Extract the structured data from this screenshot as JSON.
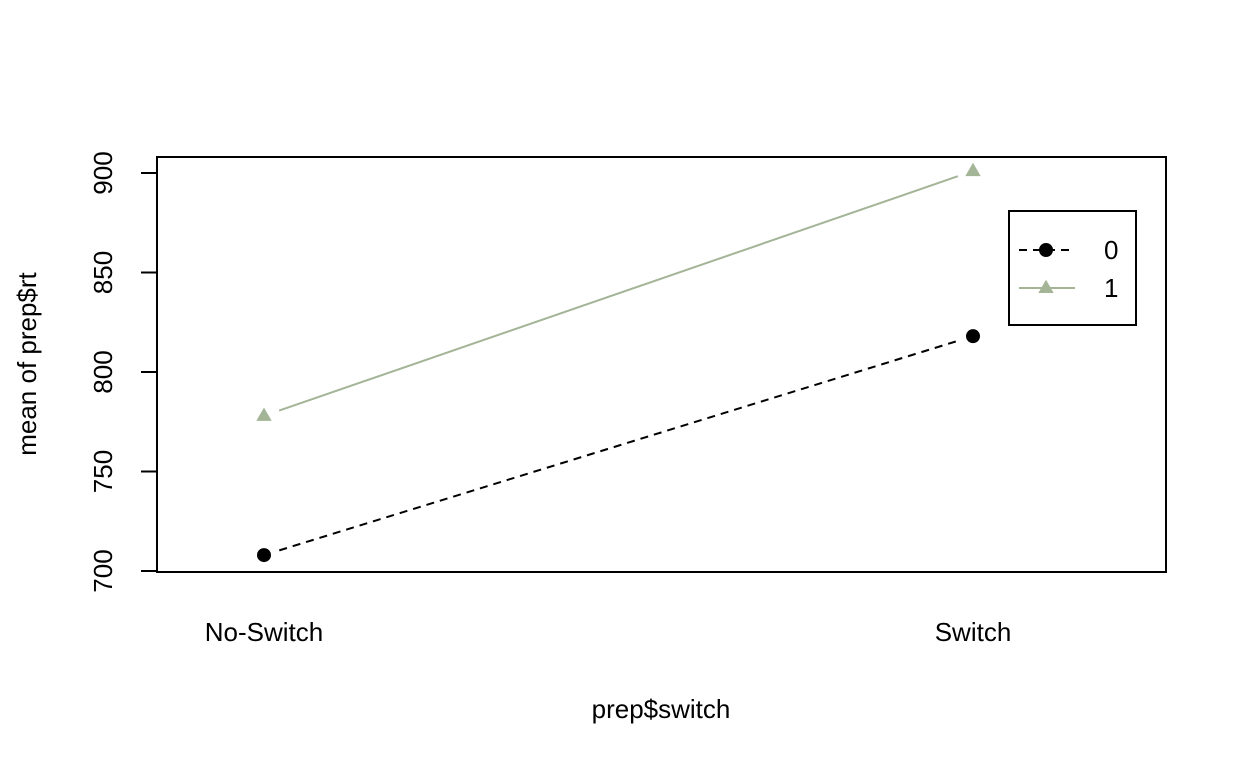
{
  "chart_data": {
    "type": "line",
    "xlabel": "prep$switch",
    "ylabel": "mean of  prep$rt",
    "categories": [
      "No-Switch",
      "Switch"
    ],
    "ylim": [
      700,
      910
    ],
    "yticks": [
      700,
      750,
      800,
      850,
      900
    ],
    "legend_position": "top-right",
    "series": [
      {
        "name": "0",
        "values": [
          708,
          818
        ],
        "line_style": "dashed",
        "marker": "circle",
        "color": "#000000"
      },
      {
        "name": "1",
        "values": [
          778,
          901
        ],
        "line_style": "solid",
        "marker": "triangle",
        "color": "#a4b496"
      }
    ]
  }
}
